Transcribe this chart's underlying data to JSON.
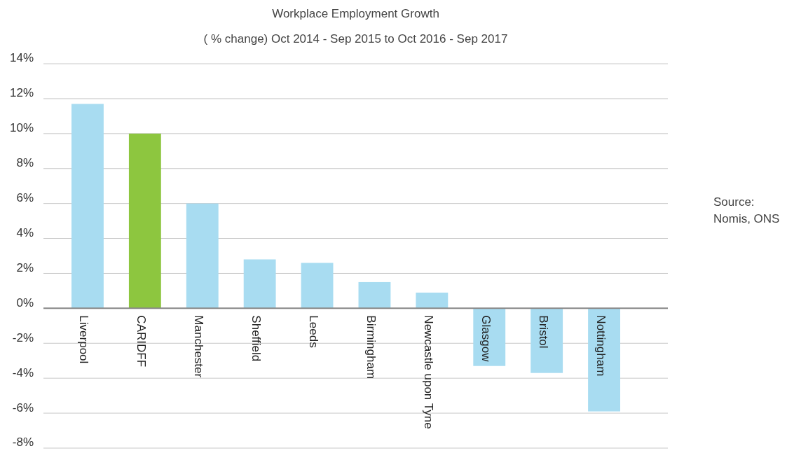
{
  "chart_data": {
    "type": "bar",
    "title": "Workplace Employment Growth",
    "subtitle": "( % change) Oct 2014 - Sep 2015 to Oct 2016 - Sep 2017",
    "categories": [
      "Liverpool",
      "CARIDFF",
      "Manchester",
      "Sheffield",
      "Leeds",
      "Birmingham",
      "Newcastle upon Tyne",
      "Glasgow",
      "Bristol",
      "Nottingham"
    ],
    "values": [
      11.7,
      10.0,
      6.0,
      2.8,
      2.6,
      1.5,
      0.9,
      -3.3,
      -3.7,
      -5.9
    ],
    "colors": [
      "#a8dcf1",
      "#8dc63f",
      "#a8dcf1",
      "#a8dcf1",
      "#a8dcf1",
      "#a8dcf1",
      "#a8dcf1",
      "#a8dcf1",
      "#a8dcf1",
      "#a8dcf1"
    ],
    "ylim": [
      -8,
      14
    ],
    "yticks": [
      {
        "value": -8,
        "label": "-8%"
      },
      {
        "value": -6,
        "label": "-6%"
      },
      {
        "value": -4,
        "label": "-4%"
      },
      {
        "value": -2,
        "label": "-2%"
      },
      {
        "value": 0,
        "label": "0%"
      },
      {
        "value": 2,
        "label": "2%"
      },
      {
        "value": 4,
        "label": "4%"
      },
      {
        "value": 6,
        "label": "6%"
      },
      {
        "value": 8,
        "label": "8%"
      },
      {
        "value": 10,
        "label": "10%"
      },
      {
        "value": 12,
        "label": "12%"
      },
      {
        "value": 14,
        "label": "14%"
      }
    ],
    "grid": "y",
    "annotations": [
      "Source:\nNomis, ONS"
    ]
  }
}
